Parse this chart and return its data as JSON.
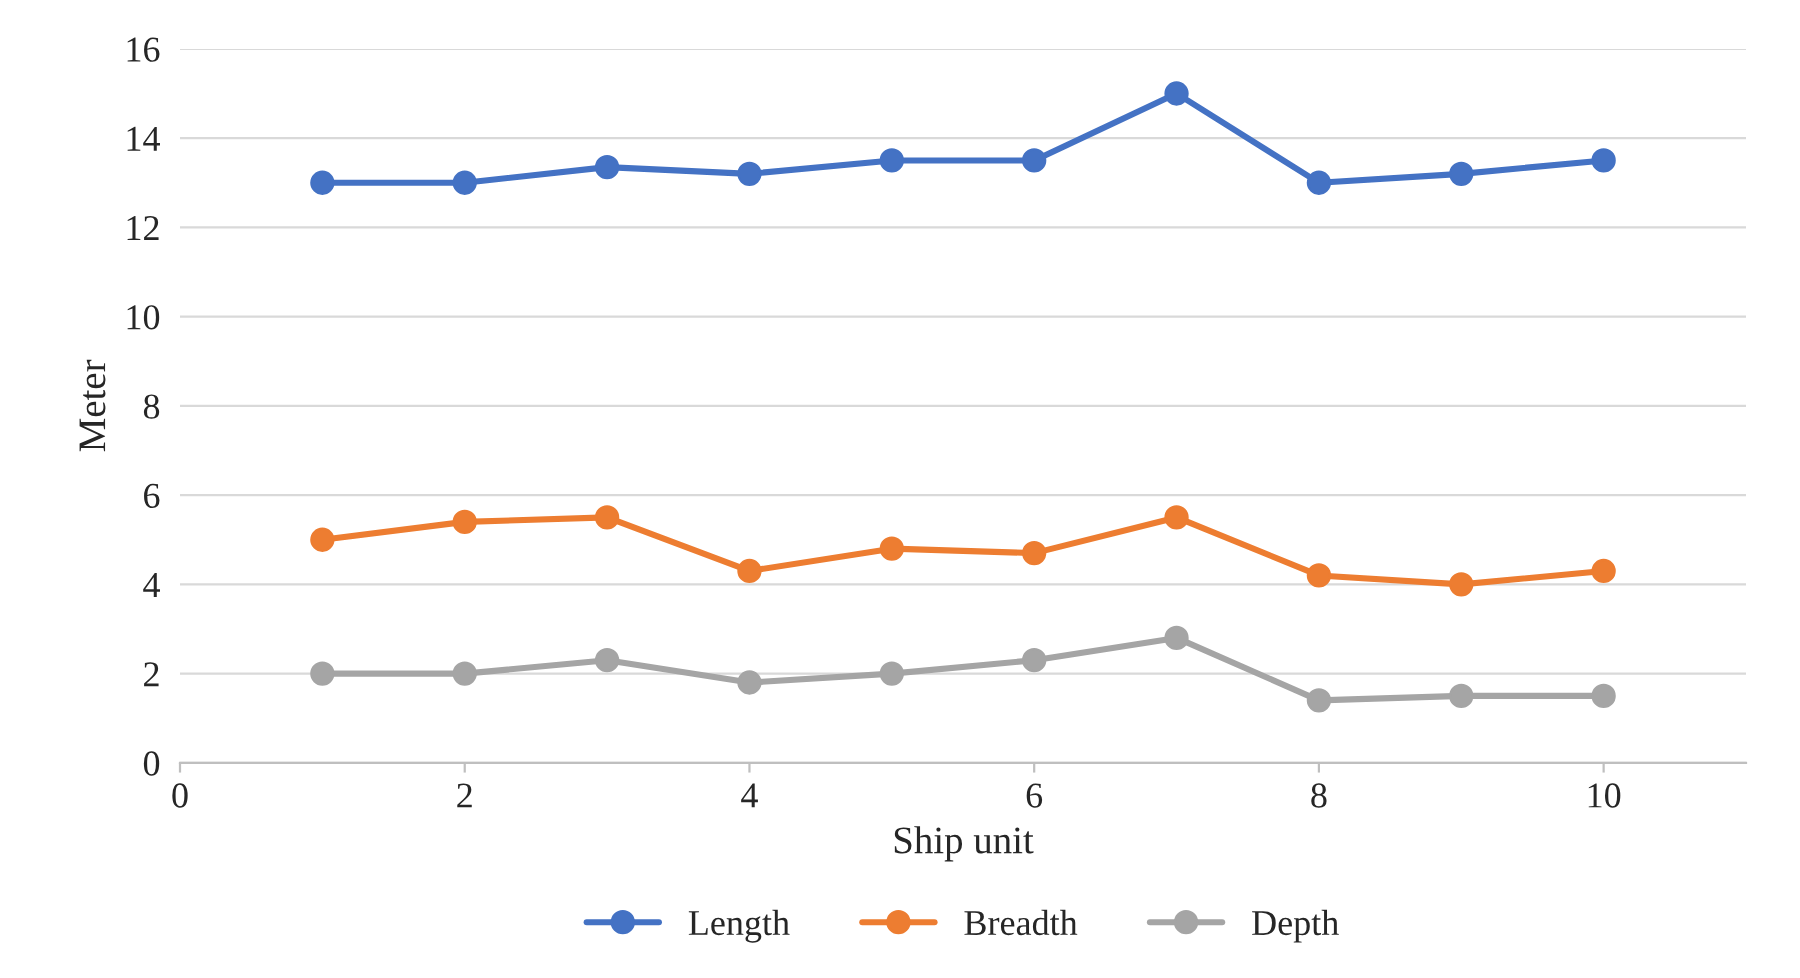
{
  "chart_data": {
    "type": "line",
    "xlabel": "Ship unit",
    "ylabel": "Meter",
    "x": [
      1,
      2,
      3,
      4,
      5,
      6,
      7,
      8,
      9,
      10
    ],
    "series": [
      {
        "name": "Length",
        "color": "#4472c4",
        "values": [
          13,
          13,
          13.35,
          13.2,
          13.5,
          13.5,
          15,
          13,
          13.2,
          13.5
        ]
      },
      {
        "name": "Breadth",
        "color": "#ed7d31",
        "values": [
          5,
          5.4,
          5.5,
          4.3,
          4.8,
          4.7,
          5.5,
          4.2,
          4,
          4.3
        ]
      },
      {
        "name": "Depth",
        "color": "#a5a5a5",
        "values": [
          2,
          2,
          2.3,
          1.8,
          2,
          2.3,
          2.8,
          1.4,
          1.5,
          1.5
        ]
      }
    ],
    "xlim": [
      0,
      11
    ],
    "xticks": [
      0,
      2,
      4,
      6,
      8,
      10
    ],
    "ylim": [
      0,
      16
    ],
    "yticks": [
      0,
      2,
      4,
      6,
      8,
      10,
      12,
      14,
      16
    ],
    "grid": "y",
    "legend": "bottom",
    "marker": "circle",
    "line_style": "solid"
  }
}
